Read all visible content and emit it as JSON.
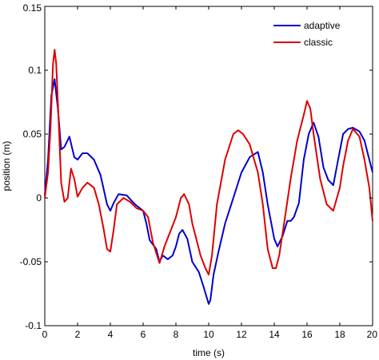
{
  "chart_data": {
    "type": "line",
    "xlabel": "time (s)",
    "ylabel": "position (m)",
    "xlim": [
      0,
      20
    ],
    "ylim": [
      -0.1,
      0.15
    ],
    "xticks": [
      0,
      2,
      4,
      6,
      8,
      10,
      12,
      14,
      16,
      18,
      20
    ],
    "yticks": [
      -0.1,
      -0.05,
      0,
      0.05,
      0.1,
      0.15
    ],
    "xtick_labels": [
      "0",
      "2",
      "4",
      "6",
      "8",
      "10",
      "12",
      "14",
      "16",
      "18",
      "20"
    ],
    "ytick_labels": [
      "-0.1",
      "-0.05",
      "0",
      "0.05",
      "0.1",
      "0.15"
    ],
    "grid": false,
    "legend_position": "top-right",
    "series": [
      {
        "name": "adaptive",
        "color": "#0000cc",
        "x": [
          0,
          0.2,
          0.4,
          0.6,
          0.8,
          1.0,
          1.2,
          1.5,
          1.8,
          2.0,
          2.3,
          2.6,
          3.0,
          3.4,
          3.8,
          4.0,
          4.2,
          4.5,
          5.0,
          5.5,
          6.0,
          6.2,
          6.4,
          6.8,
          7.0,
          7.2,
          7.5,
          7.8,
          8.0,
          8.2,
          8.4,
          8.7,
          9.0,
          9.4,
          9.7,
          10.0,
          10.1,
          10.3,
          10.6,
          11.0,
          11.5,
          12.0,
          12.5,
          13.0,
          13.3,
          13.6,
          14.0,
          14.2,
          14.5,
          14.8,
          15.0,
          15.2,
          15.5,
          15.8,
          16.1,
          16.4,
          16.7,
          17.0,
          17.3,
          17.6,
          17.9,
          18.2,
          18.5,
          18.8,
          19.2,
          19.5,
          19.8,
          20.0
        ],
        "y": [
          0.002,
          0.03,
          0.08,
          0.093,
          0.07,
          0.038,
          0.04,
          0.048,
          0.032,
          0.03,
          0.035,
          0.035,
          0.03,
          0.018,
          -0.005,
          -0.01,
          -0.004,
          0.003,
          0.002,
          -0.005,
          -0.01,
          -0.02,
          -0.033,
          -0.04,
          -0.05,
          -0.045,
          -0.048,
          -0.045,
          -0.038,
          -0.028,
          -0.025,
          -0.032,
          -0.05,
          -0.058,
          -0.07,
          -0.083,
          -0.08,
          -0.06,
          -0.042,
          -0.02,
          0.0,
          0.02,
          0.032,
          0.036,
          0.02,
          -0.005,
          -0.032,
          -0.038,
          -0.03,
          -0.018,
          -0.018,
          -0.015,
          -0.004,
          0.03,
          0.05,
          0.059,
          0.048,
          0.024,
          0.014,
          0.01,
          0.03,
          0.05,
          0.054,
          0.055,
          0.052,
          0.045,
          0.03,
          0.02
        ]
      },
      {
        "name": "classic",
        "color": "#dd0000",
        "x": [
          0,
          0.2,
          0.35,
          0.5,
          0.6,
          0.7,
          0.85,
          1.0,
          1.2,
          1.4,
          1.6,
          1.8,
          2.0,
          2.3,
          2.6,
          3.0,
          3.3,
          3.6,
          3.8,
          4.0,
          4.2,
          4.4,
          4.8,
          5.2,
          5.6,
          6.0,
          6.3,
          6.6,
          7.0,
          7.3,
          7.7,
          8.0,
          8.3,
          8.5,
          8.8,
          9.0,
          9.5,
          9.8,
          10.0,
          10.2,
          10.5,
          11.0,
          11.5,
          11.8,
          12.1,
          12.5,
          13.0,
          13.3,
          13.6,
          13.9,
          14.1,
          14.3,
          14.6,
          15.0,
          15.4,
          15.8,
          16.0,
          16.2,
          16.4,
          16.8,
          17.2,
          17.6,
          18.0,
          18.2,
          18.5,
          18.8,
          19.2,
          19.5,
          19.8,
          20.0
        ],
        "y": [
          0.0,
          0.02,
          0.055,
          0.105,
          0.116,
          0.105,
          0.06,
          0.012,
          -0.003,
          0.0,
          0.023,
          0.015,
          0.001,
          0.008,
          0.012,
          0.008,
          -0.005,
          -0.025,
          -0.04,
          -0.042,
          -0.025,
          -0.005,
          0.0,
          -0.003,
          -0.008,
          -0.01,
          -0.015,
          -0.035,
          -0.051,
          -0.038,
          -0.025,
          -0.015,
          0.0,
          0.003,
          -0.005,
          -0.02,
          -0.045,
          -0.055,
          -0.06,
          -0.045,
          -0.005,
          0.03,
          0.05,
          0.053,
          0.05,
          0.042,
          0.02,
          -0.005,
          -0.04,
          -0.055,
          -0.055,
          -0.045,
          -0.02,
          0.015,
          0.045,
          0.065,
          0.076,
          0.07,
          0.05,
          0.015,
          -0.005,
          -0.01,
          0.008,
          0.025,
          0.045,
          0.054,
          0.048,
          0.03,
          0.008,
          -0.018
        ]
      }
    ]
  }
}
